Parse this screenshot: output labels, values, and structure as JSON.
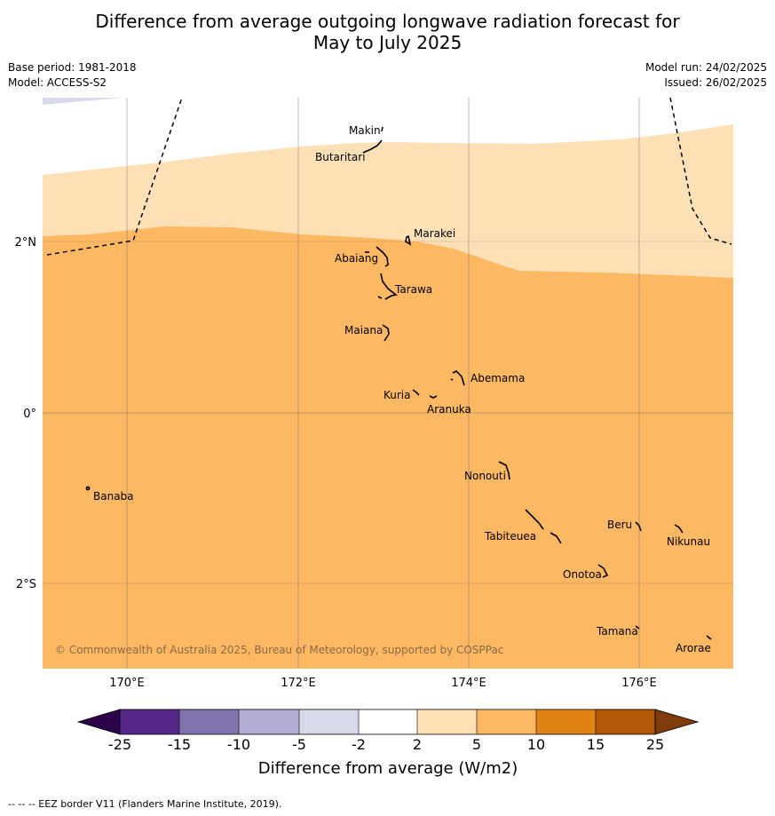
{
  "title": {
    "line1": "Difference from average outgoing longwave radiation forecast for",
    "line2": "May to July 2025"
  },
  "meta": {
    "base_period": "Base period: 1981-2018",
    "model": "Model: ACCESS-S2",
    "model_run": "Model run: 24/02/2025",
    "issued": "Issued: 26/02/2025"
  },
  "map": {
    "lon_labels": [
      "170°E",
      "172°E",
      "174°E",
      "176°E"
    ],
    "lat_labels": [
      "2°N",
      "0°",
      "2°S"
    ],
    "copyright": "© Commonwealth of Australia 2025, Bureau of Meteorology, supported by COSPPac",
    "places": [
      {
        "name": "Makin",
        "lon": 172.9,
        "lat": 3.3
      },
      {
        "name": "Butaritari",
        "lon": 172.8,
        "lat": 3.1
      },
      {
        "name": "Marakei",
        "lon": 173.3,
        "lat": 2.0
      },
      {
        "name": "Abaiang",
        "lon": 172.95,
        "lat": 1.8
      },
      {
        "name": "Tarawa",
        "lon": 173.0,
        "lat": 1.4
      },
      {
        "name": "Maiana",
        "lon": 173.0,
        "lat": 0.95
      },
      {
        "name": "Abemama",
        "lon": 173.85,
        "lat": 0.4
      },
      {
        "name": "Kuria",
        "lon": 173.4,
        "lat": 0.22
      },
      {
        "name": "Aranuka",
        "lon": 173.6,
        "lat": 0.17
      },
      {
        "name": "Nonouti",
        "lon": 174.4,
        "lat": -0.67
      },
      {
        "name": "Banaba",
        "lon": 169.55,
        "lat": -0.87
      },
      {
        "name": "Tabiteuea",
        "lon": 174.9,
        "lat": -1.35
      },
      {
        "name": "Beru",
        "lon": 176.0,
        "lat": -1.33
      },
      {
        "name": "Nikunau",
        "lon": 176.45,
        "lat": -1.38
      },
      {
        "name": "Onotoa",
        "lon": 175.58,
        "lat": -1.8
      },
      {
        "name": "Tamana",
        "lon": 175.98,
        "lat": -2.5
      },
      {
        "name": "Arorae",
        "lon": 176.82,
        "lat": -2.65
      }
    ]
  },
  "colorbar": {
    "title": "Difference from average (W/m2)",
    "ticks": [
      "-25",
      "-15",
      "-10",
      "-5",
      "-2",
      "2",
      "5",
      "10",
      "15",
      "25"
    ],
    "colors": [
      "#2d004b",
      "#542788",
      "#8073ac",
      "#b2abd2",
      "#d8daeb",
      "#ffffff",
      "#fee0b6",
      "#fdb863",
      "#e08214",
      "#b35806",
      "#7f3b08"
    ]
  },
  "footer": "--  --  -- EEZ border V11 (Flanders Marine Institute, 2019)."
}
